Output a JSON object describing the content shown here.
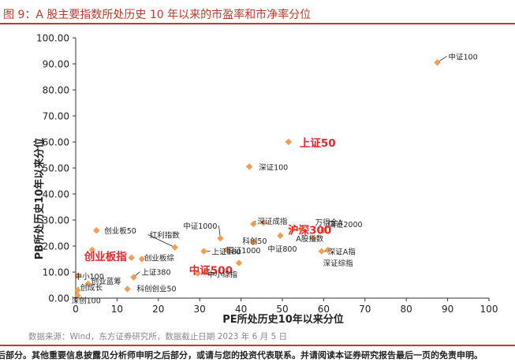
{
  "figure_title": "图 9：A 股主要指数所处历史 10 年以来的市盈率和市净率分位",
  "source_note": "数据来源：Wind，东方证券研究所，数据截止日期 2023 年 6 月 5 日",
  "disclaimer": "后部分。其他重要信息披露见分析师申明之后部分，或请与您的投资代表联系。并请阅读本证券研究报告最后一页的免责申明。",
  "colors": {
    "marker": "#f29d55",
    "highlight_label": "#e8262a",
    "title": "#c0392b",
    "axis": "#333333"
  },
  "chart_data": {
    "type": "scatter",
    "xlabel": "PE所处历史10年以来分位",
    "ylabel": "PB所处历史10年以来分位",
    "xlim": [
      0,
      100
    ],
    "ylim": [
      0,
      100
    ],
    "x_ticks": [
      "0",
      "10",
      "20",
      "30",
      "40",
      "50",
      "60",
      "70",
      "80",
      "90",
      "100"
    ],
    "y_ticks": [
      "0.00",
      "10.00",
      "20.00",
      "30.00",
      "40.00",
      "50.00",
      "60.00",
      "70.00",
      "80.00",
      "90.00",
      "100.00"
    ],
    "grid": false,
    "points": [
      {
        "name": "中证100",
        "x": 87.5,
        "y": 90.5
      },
      {
        "name": "上证50",
        "x": 51.5,
        "y": 60.0,
        "highlight": true
      },
      {
        "name": "深证100",
        "x": 42.0,
        "y": 50.5
      },
      {
        "name": "万得全A",
        "x": 54.5,
        "y": 26.5
      },
      {
        "name": "国证2000",
        "x": 60.0,
        "y": 26.0
      },
      {
        "name": "深证成指",
        "x": 43.0,
        "y": 28.5
      },
      {
        "name": "沪深300",
        "x": 52.5,
        "y": 26.5,
        "highlight": true
      },
      {
        "name": "中证500",
        "x": 39.5,
        "y": 13.5,
        "highlight": true
      },
      {
        "name": "创业板指",
        "x": 13.5,
        "y": 15.5,
        "highlight": true
      },
      {
        "name": "中证1000",
        "x": 35.0,
        "y": 23.0
      },
      {
        "name": "创业板50",
        "x": 5.0,
        "y": 26.0
      },
      {
        "name": "红利指数",
        "x": 24.0,
        "y": 19.5
      },
      {
        "name": "创业板综",
        "x": 16.0,
        "y": 15.0
      },
      {
        "name": "中证800",
        "x": 49.5,
        "y": 24.0
      },
      {
        "name": "A股指数",
        "x": 57.5,
        "y": 23.0
      },
      {
        "name": "深证A指",
        "x": 59.5,
        "y": 18.0
      },
      {
        "name": "深证综指",
        "x": 61.0,
        "y": 18.5
      },
      {
        "name": "科创50",
        "x": 43.0,
        "y": 21.5
      },
      {
        "name": "上证180",
        "x": 31.0,
        "y": 18.0
      },
      {
        "name": "国证1000",
        "x": 36.5,
        "y": 18.5
      },
      {
        "name": "中小100",
        "x": 0.5,
        "y": 8.5
      },
      {
        "name": "中小综指",
        "x": 31.5,
        "y": 10.5
      },
      {
        "name": "创业蓝筹",
        "x": 3.0,
        "y": 5.5
      },
      {
        "name": "上证380",
        "x": 14.0,
        "y": 8.0
      },
      {
        "name": "科创创业50",
        "x": 12.5,
        "y": 3.5
      },
      {
        "name": "创成长",
        "x": 0.5,
        "y": 3.0
      },
      {
        "name": "深创100",
        "x": 0.5,
        "y": 1.0
      },
      {
        "name": "",
        "x": 29.5,
        "y": 9.5
      },
      {
        "name": "",
        "x": 45.5,
        "y": 29.0
      },
      {
        "name": "",
        "x": 4.0,
        "y": 18.5
      }
    ]
  }
}
